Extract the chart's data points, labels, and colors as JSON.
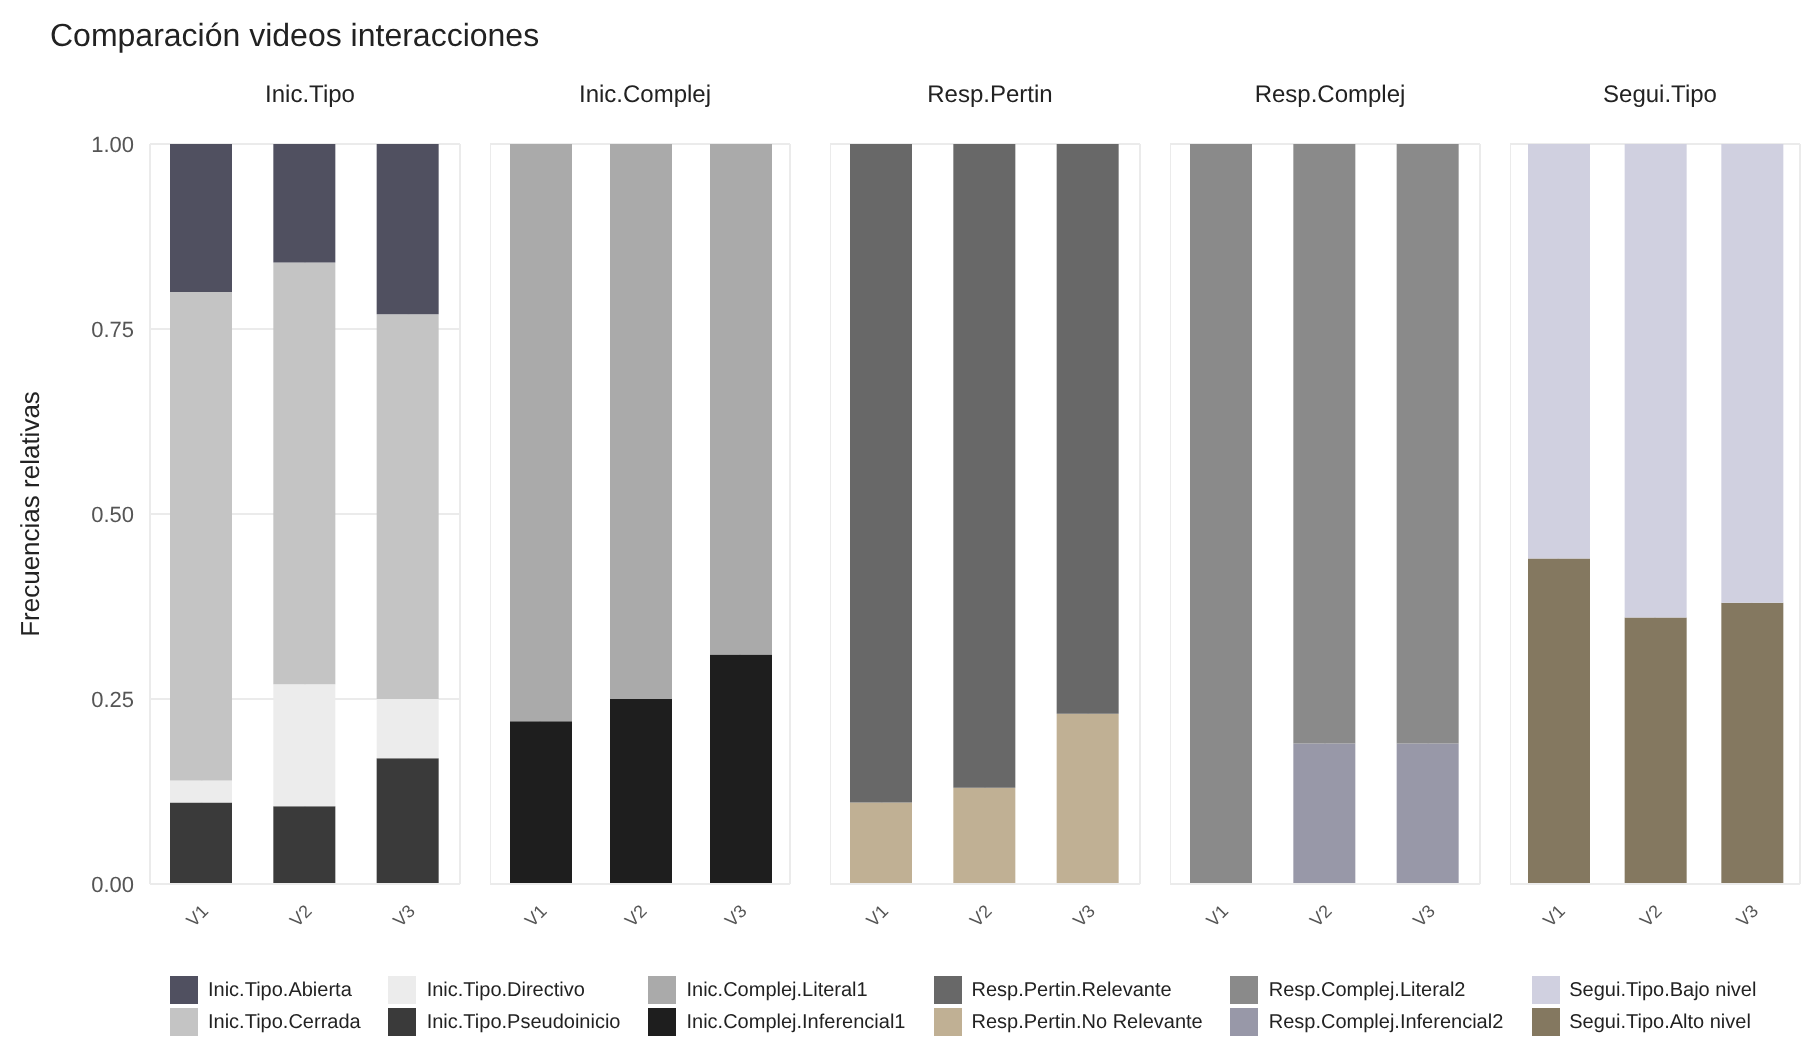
{
  "chart_data": [
    {
      "type": "bar",
      "title": "Comparación videos interacciones",
      "subtitle": "Inic.Tipo",
      "ylabel": "Frecuencias relativas",
      "categories": [
        "V1",
        "V2",
        "V3"
      ],
      "stacked": true,
      "ylim": [
        0,
        1
      ],
      "yticks": [
        {
          "value": 0,
          "label": "0.00"
        },
        {
          "value": 0.25,
          "label": "0.25"
        },
        {
          "value": 0.5,
          "label": "0.50"
        },
        {
          "value": 0.75,
          "label": "0.75"
        },
        {
          "value": 1,
          "label": "1.00"
        }
      ],
      "grid": true,
      "legend": "bottom",
      "series": [
        {
          "name": "Inic.Tipo.Pseudoinicio",
          "color": "#3a3a3a",
          "values": [
            0.11,
            0.105,
            0.17
          ]
        },
        {
          "name": "Inic.Tipo.Directivo",
          "color": "#ececec",
          "values": [
            0.03,
            0.165,
            0.08
          ]
        },
        {
          "name": "Inic.Tipo.Cerrada",
          "color": "#c4c4c4",
          "values": [
            0.66,
            0.57,
            0.52
          ]
        },
        {
          "name": "Inic.Tipo.Abierta",
          "color": "#505060",
          "values": [
            0.2,
            0.16,
            0.23
          ]
        }
      ]
    },
    {
      "type": "bar",
      "title": "Inic.Complej",
      "categories": [
        "V1",
        "V2",
        "V3"
      ],
      "stacked": true,
      "ylim": [
        0,
        1
      ],
      "tick_labels": "x",
      "grid": true,
      "legend": "bottom",
      "series": [
        {
          "name": "Inic.Complej.Inferencial1",
          "color": "#1e1e1e",
          "values": [
            0.22,
            0.25,
            0.31
          ]
        },
        {
          "name": "Inic.Complej.Literal1",
          "color": "#aaaaaa",
          "values": [
            0.78,
            0.75,
            0.69
          ]
        }
      ]
    },
    {
      "type": "bar",
      "title": "Resp.Pertin",
      "categories": [
        "V1",
        "V2",
        "V3"
      ],
      "stacked": true,
      "ylim": [
        0,
        1
      ],
      "tick_labels": "x",
      "grid": true,
      "legend": "bottom",
      "series": [
        {
          "name": "Resp.Pertin.No Relevante",
          "color": "#c0b094",
          "values": [
            0.11,
            0.13,
            0.23
          ]
        },
        {
          "name": "Resp.Pertin.Relevante",
          "color": "#686868",
          "values": [
            0.89,
            0.87,
            0.77
          ]
        }
      ]
    },
    {
      "type": "bar",
      "title": "Resp.Complej",
      "categories": [
        "V1",
        "V2",
        "V3"
      ],
      "stacked": true,
      "ylim": [
        0,
        1
      ],
      "tick_labels": "x",
      "grid": true,
      "legend": "bottom",
      "series": [
        {
          "name": "Resp.Complej.Inferencial2",
          "color": "#9898a8",
          "values": [
            0,
            0.19,
            0.19
          ]
        },
        {
          "name": "Resp.Complej.Literal2",
          "color": "#8a8a8a",
          "values": [
            1,
            0.81,
            0.81
          ]
        }
      ]
    },
    {
      "type": "bar",
      "title": "Segui.Tipo",
      "categories": [
        "V1",
        "V2",
        "V3"
      ],
      "stacked": true,
      "ylim": [
        0,
        1
      ],
      "tick_labels": "x",
      "grid": true,
      "legend": "bottom",
      "series": [
        {
          "name": "Segui.Tipo.Alto nivel",
          "color": "#847860",
          "values": [
            0.44,
            0.36,
            0.38
          ]
        },
        {
          "name": "Segui.Tipo.Bajo nivel",
          "color": "#d0d0e0",
          "values": [
            0.56,
            0.64,
            0.62
          ]
        }
      ]
    }
  ]
}
